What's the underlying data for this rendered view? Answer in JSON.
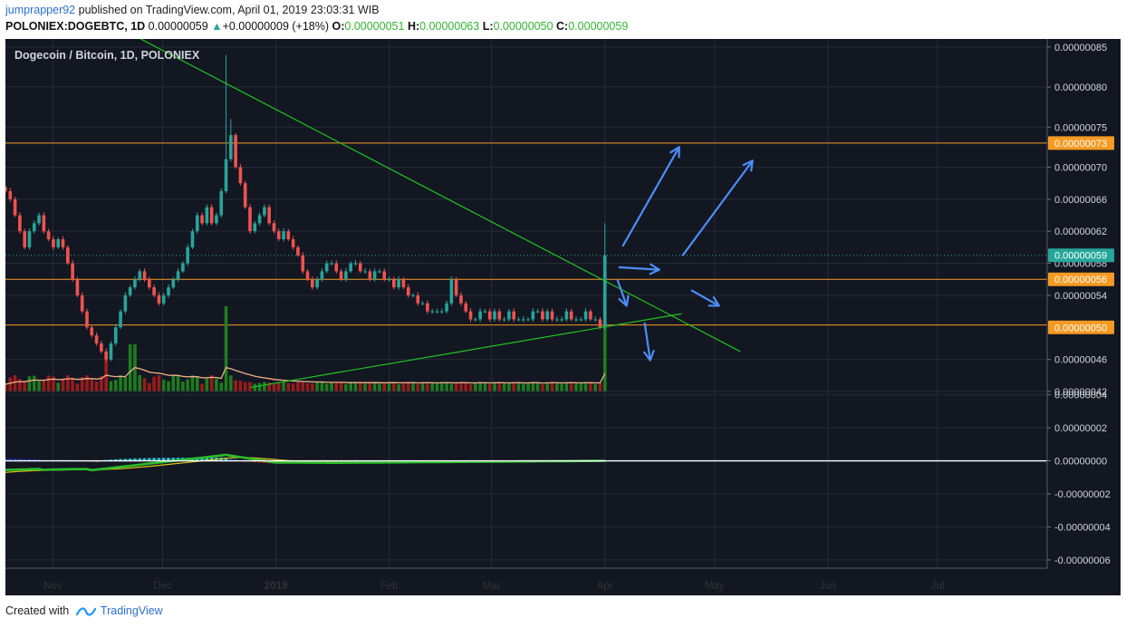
{
  "header": {
    "author": "jumprapper92",
    "published_text": "published on TradingView.com, April 01, 2019 23:03:31 WIB",
    "symbol": "POLONIEX:DOGEBTC, 1D",
    "last": "0.00000059",
    "change_arrow": "▲",
    "change": "+0.00000009 (+18%)",
    "o_label": "O:",
    "o": "0.00000051",
    "h_label": "H:",
    "h": "0.00000063",
    "l_label": "L:",
    "l": "0.00000050",
    "c_label": "C:",
    "c": "0.00000059"
  },
  "footer": {
    "created": "Created with",
    "brand": "TradingView",
    "logo_icon": "tradingview-logo-icon"
  },
  "colors": {
    "background": "#131722",
    "grid": "#262b38",
    "up": "#26a69a",
    "down": "#ef5350",
    "level": "#f59a23",
    "trend": "#22c322",
    "arrow": "#4c8ef7",
    "volume_up": "#1e7d1e",
    "volume_down": "#9b1c1c"
  },
  "chart_data": {
    "type": "candlestick",
    "title": "Dogecoin / Bitcoin, 1D, POLONIEX",
    "x_ticks": [
      "Nov",
      "Dec",
      "2019",
      "Feb",
      "Mar",
      "Apr",
      "May",
      "Jun",
      "Jul"
    ],
    "price_axis": {
      "ticks": [
        "0.00000085",
        "0.00000080",
        "0.00000075",
        "0.00000070",
        "0.00000066",
        "0.00000062",
        "0.00000058",
        "0.00000054",
        "0.00000046",
        "0.00000042"
      ],
      "range": [
        4.2e-07,
        8.6e-07
      ]
    },
    "price_labels": [
      {
        "value": "0.00000073",
        "kind": "level"
      },
      {
        "value": "0.00000059",
        "kind": "last"
      },
      {
        "value": "0.00000056",
        "kind": "level"
      },
      {
        "value": "0.00000050",
        "kind": "level"
      }
    ],
    "horizontal_levels": [
      7.3e-07,
      5.6e-07,
      5.03e-07
    ],
    "last_price": 5.9e-07,
    "trendlines": [
      {
        "name": "descending-resistance",
        "from": [
          "2018-11-25",
          8.6e-07
        ],
        "to": [
          "2019-05-08",
          4.7e-07
        ]
      },
      {
        "name": "ascending-support",
        "from": [
          "2018-12-25",
          4.25e-07
        ],
        "to": [
          "2019-04-22",
          5.17e-07
        ]
      }
    ],
    "closes": [
      6.7e-07,
      6.6e-07,
      6.4e-07,
      6.2e-07,
      6e-07,
      6.2e-07,
      6.3e-07,
      6.4e-07,
      6.2e-07,
      6.1e-07,
      6e-07,
      6.1e-07,
      6e-07,
      5.8e-07,
      5.6e-07,
      5.4e-07,
      5.2e-07,
      5e-07,
      4.9e-07,
      4.8e-07,
      4.7e-07,
      4.6e-07,
      4.8e-07,
      5e-07,
      5.2e-07,
      5.4e-07,
      5.5e-07,
      5.6e-07,
      5.7e-07,
      5.6e-07,
      5.5e-07,
      5.4e-07,
      5.3e-07,
      5.4e-07,
      5.5e-07,
      5.6e-07,
      5.7e-07,
      5.8e-07,
      6e-07,
      6.2e-07,
      6.4e-07,
      6.3e-07,
      6.5e-07,
      6.3e-07,
      6.4e-07,
      6.7e-07,
      7.1e-07,
      7.4e-07,
      7e-07,
      6.8e-07,
      6.5e-07,
      6.2e-07,
      6.3e-07,
      6.4e-07,
      6.5e-07,
      6.3e-07,
      6.2e-07,
      6.1e-07,
      6.2e-07,
      6.1e-07,
      6e-07,
      5.9e-07,
      5.7e-07,
      5.6e-07,
      5.5e-07,
      5.6e-07,
      5.7e-07,
      5.8e-07,
      5.8e-07,
      5.7e-07,
      5.6e-07,
      5.7e-07,
      5.8e-07,
      5.8e-07,
      5.7e-07,
      5.7e-07,
      5.6e-07,
      5.7e-07,
      5.7e-07,
      5.6e-07,
      5.6e-07,
      5.5e-07,
      5.6e-07,
      5.5e-07,
      5.4e-07,
      5.4e-07,
      5.3e-07,
      5.3e-07,
      5.2e-07,
      5.2e-07,
      5.2e-07,
      5.2e-07,
      5.3e-07,
      5.6e-07,
      5.4e-07,
      5.3e-07,
      5.2e-07,
      5.1e-07,
      5.1e-07,
      5.2e-07,
      5.2e-07,
      5.1e-07,
      5.2e-07,
      5.1e-07,
      5.1e-07,
      5.2e-07,
      5.1e-07,
      5.1e-07,
      5.1e-07,
      5.1e-07,
      5.2e-07,
      5.2e-07,
      5.1e-07,
      5.2e-07,
      5.1e-07,
      5.1e-07,
      5.1e-07,
      5.2e-07,
      5.1e-07,
      5.1e-07,
      5.1e-07,
      5.2e-07,
      5.1e-07,
      5.1e-07,
      5e-07,
      5.9e-07
    ],
    "macd_axis": {
      "ticks": [
        "0.00000004",
        "0.00000002",
        "0.00000000",
        "-0.00000002",
        "-0.00000004",
        "-0.00000006"
      ],
      "range": [
        -6.5e-08,
        4.2e-08
      ]
    },
    "annotation_arrows": [
      {
        "direction": "up"
      },
      {
        "direction": "up"
      },
      {
        "direction": "right"
      },
      {
        "direction": "down"
      },
      {
        "direction": "down-right"
      },
      {
        "direction": "down"
      }
    ]
  }
}
